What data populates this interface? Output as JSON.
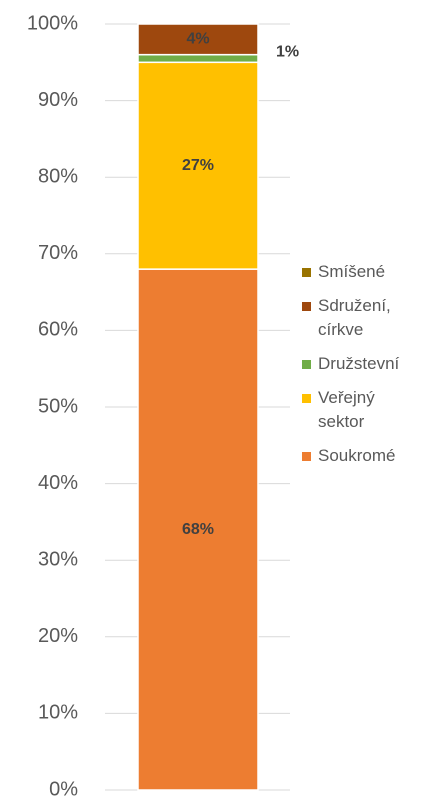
{
  "chart_data": {
    "type": "stacked_bar",
    "series": [
      {
        "name": "Soukromé",
        "color": "#ED7D31",
        "values": [
          68
        ],
        "value_labels": [
          "68%"
        ]
      },
      {
        "name": "Veřejný sektor",
        "color": "#FFC000",
        "values": [
          27
        ],
        "value_labels": [
          "27%"
        ]
      },
      {
        "name": "Družstevní",
        "color": "#70AD47",
        "values": [
          1
        ],
        "value_labels": [
          "1%"
        ]
      },
      {
        "name": "Sdružení, církve",
        "color": "#9E480E",
        "values": [
          4
        ],
        "value_labels": [
          "4%"
        ]
      },
      {
        "name": "Smíšené",
        "color": "#997300",
        "values": [
          0
        ]
      }
    ],
    "ylim": [
      0,
      100
    ],
    "yticks": [
      {
        "value": 0,
        "label": "0%"
      },
      {
        "value": 10,
        "label": "10%"
      },
      {
        "value": 20,
        "label": "20%"
      },
      {
        "value": 30,
        "label": "30%"
      },
      {
        "value": 40,
        "label": "40%"
      },
      {
        "value": 50,
        "label": "50%"
      },
      {
        "value": 60,
        "label": "60%"
      },
      {
        "value": 70,
        "label": "70%"
      },
      {
        "value": 80,
        "label": "80%"
      },
      {
        "value": 90,
        "label": "90%"
      },
      {
        "value": 100,
        "label": "100%"
      }
    ],
    "grid": true,
    "legend": "right"
  }
}
